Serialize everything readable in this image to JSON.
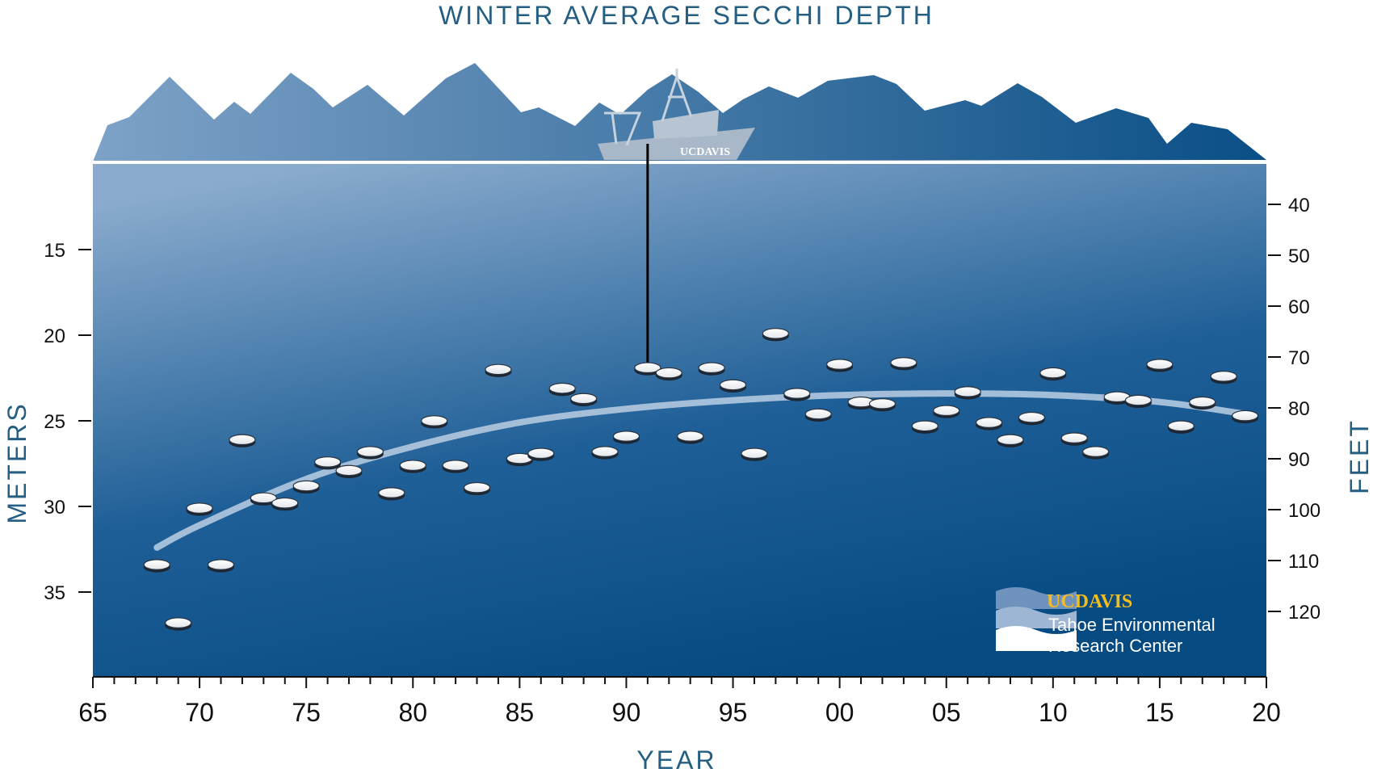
{
  "colors": {
    "title": "#245e82",
    "water_top": "#7fa3c8",
    "water_bottom": "#064a82",
    "mountain_left": "#7ea2c7",
    "mountain_right": "#0a4f86",
    "trend": "#b3c9e0",
    "logo_gold": "#f2bd1d"
  },
  "chart_data": {
    "type": "scatter",
    "title": "WINTER AVERAGE SECCHI DEPTH",
    "xlabel": "YEAR",
    "ylabel": "METERS",
    "ylabel_right": "FEET",
    "xlim": [
      1965,
      2020
    ],
    "ylim": [
      40,
      10
    ],
    "x_ticks": [
      1965,
      1970,
      1975,
      1980,
      1985,
      1990,
      1995,
      2000,
      2005,
      2010,
      2015,
      2020
    ],
    "x_tick_labels": [
      "65",
      "70",
      "75",
      "80",
      "85",
      "90",
      "95",
      "00",
      "05",
      "10",
      "15",
      "20"
    ],
    "y_ticks": [
      15,
      20,
      25,
      30,
      35
    ],
    "y_tick_labels": [
      "15",
      "20",
      "25",
      "30",
      "35"
    ],
    "y_ticks_feet": [
      40,
      50,
      60,
      70,
      80,
      90,
      100,
      110,
      120
    ],
    "y_tick_labels_feet": [
      "40",
      "50",
      "60",
      "70",
      "80",
      "90",
      "100",
      "110",
      "120"
    ],
    "series": [
      {
        "name": "Winter average Secchi depth (m)",
        "x": [
          1968,
          1969,
          1970,
          1971,
          1972,
          1973,
          1974,
          1975,
          1976,
          1977,
          1978,
          1979,
          1980,
          1981,
          1982,
          1983,
          1984,
          1985,
          1986,
          1987,
          1988,
          1989,
          1990,
          1991,
          1992,
          1993,
          1994,
          1995,
          1996,
          1997,
          1998,
          1999,
          2000,
          2001,
          2002,
          2003,
          2004,
          2005,
          2006,
          2007,
          2008,
          2009,
          2010,
          2011,
          2012,
          2013,
          2014,
          2015,
          2016,
          2017,
          2018,
          2019
        ],
        "y": [
          33.4,
          36.8,
          30.1,
          33.4,
          26.1,
          29.5,
          29.8,
          28.8,
          27.4,
          27.9,
          26.8,
          29.2,
          27.6,
          25.0,
          27.6,
          28.9,
          22.0,
          27.2,
          26.9,
          23.1,
          23.7,
          26.8,
          25.9,
          21.9,
          22.2,
          25.9,
          21.9,
          22.9,
          26.9,
          19.9,
          23.4,
          24.6,
          21.7,
          23.9,
          24.0,
          21.6,
          25.3,
          24.4,
          23.3,
          25.1,
          26.1,
          24.8,
          22.2,
          26.0,
          26.8,
          23.6,
          23.8,
          21.7,
          25.3,
          23.9,
          22.4,
          24.7
        ]
      },
      {
        "name": "Trend",
        "type": "line",
        "x": [
          1968,
          1970,
          1975,
          1980,
          1985,
          1990,
          1995,
          2000,
          2005,
          2010,
          2015,
          2019
        ],
        "y": [
          32.4,
          31.1,
          28.4,
          26.5,
          25.1,
          24.3,
          23.8,
          23.5,
          23.4,
          23.5,
          23.9,
          24.6
        ]
      }
    ],
    "highlight": {
      "year": 1991,
      "label": "Secchi disk on line from boat"
    }
  },
  "boat": {
    "label": "UCDAVIS"
  },
  "logo": {
    "brand": "UCDAVIS",
    "line1": "Tahoe Environmental",
    "line2": "Research Center"
  }
}
